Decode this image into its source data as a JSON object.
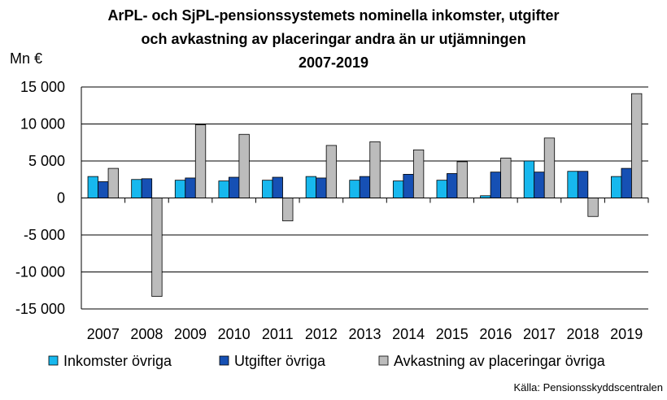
{
  "chart_data": {
    "type": "bar",
    "title_lines": [
      "ArPL- och SjPL-pensionssystemets nominella inkomster, utgifter",
      "och avkastning av placeringar andra än ur utjämningen",
      "2007-2019"
    ],
    "ylabel": "Mn €",
    "ylim": [
      -15000,
      15000
    ],
    "yticks": [
      15000,
      10000,
      5000,
      0,
      -5000,
      -10000,
      -15000
    ],
    "ytick_labels": [
      "15 000",
      "10 000",
      "5 000",
      "0",
      "-5 000",
      "-10 000",
      "-15 000"
    ],
    "grid": true,
    "categories": [
      "2007",
      "2008",
      "2009",
      "2010",
      "2011",
      "2012",
      "2013",
      "2014",
      "2015",
      "2016",
      "2017",
      "2018",
      "2019"
    ],
    "series": [
      {
        "name": "Inkomster övriga",
        "color": "#17b8ee",
        "values": [
          2900,
          2500,
          2400,
          2300,
          2400,
          2900,
          2400,
          2300,
          2400,
          300,
          5000,
          3600,
          2900
        ]
      },
      {
        "name": "Utgifter övriga",
        "color": "#1650b4",
        "values": [
          2200,
          2600,
          2700,
          2800,
          2800,
          2700,
          2900,
          3200,
          3300,
          3500,
          3500,
          3600,
          4000
        ]
      },
      {
        "name": "Avkastning av placeringar övriga",
        "color": "#bcbcbc",
        "values": [
          4000,
          -13300,
          9900,
          8600,
          -3100,
          7100,
          7600,
          6500,
          4900,
          5400,
          8100,
          -2500,
          14100
        ]
      }
    ],
    "legend_position": "bottom",
    "source": "Källa: Pensionsskyddscentralen"
  }
}
